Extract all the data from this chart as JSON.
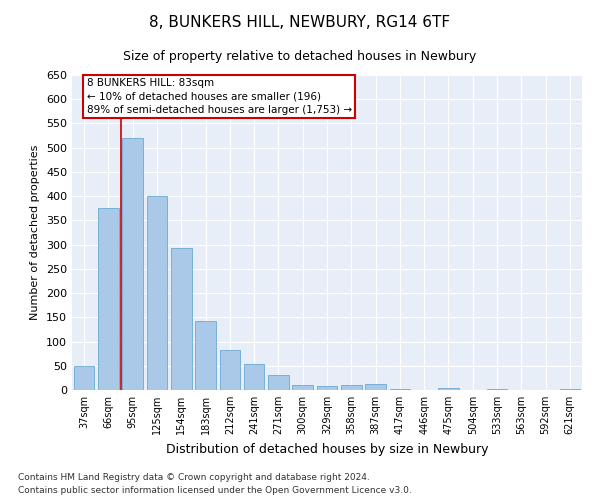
{
  "title1": "8, BUNKERS HILL, NEWBURY, RG14 6TF",
  "title2": "Size of property relative to detached houses in Newbury",
  "xlabel": "Distribution of detached houses by size in Newbury",
  "ylabel": "Number of detached properties",
  "categories": [
    "37sqm",
    "66sqm",
    "95sqm",
    "125sqm",
    "154sqm",
    "183sqm",
    "212sqm",
    "241sqm",
    "271sqm",
    "300sqm",
    "329sqm",
    "358sqm",
    "387sqm",
    "417sqm",
    "446sqm",
    "475sqm",
    "504sqm",
    "533sqm",
    "563sqm",
    "592sqm",
    "621sqm"
  ],
  "values": [
    50,
    375,
    520,
    400,
    292,
    143,
    83,
    54,
    30,
    10,
    8,
    11,
    13,
    2,
    0,
    4,
    0,
    3,
    0,
    0,
    3
  ],
  "bar_color": "#aac8e8",
  "bar_edge_color": "#6aaad4",
  "marker_line_color": "#cc0000",
  "annotation_line1": "8 BUNKERS HILL: 83sqm",
  "annotation_line2": "← 10% of detached houses are smaller (196)",
  "annotation_line3": "89% of semi-detached houses are larger (1,753) →",
  "annotation_box_color": "#ffffff",
  "annotation_border_color": "#cc0000",
  "ylim": [
    0,
    650
  ],
  "yticks": [
    0,
    50,
    100,
    150,
    200,
    250,
    300,
    350,
    400,
    450,
    500,
    550,
    600,
    650
  ],
  "background_color": "#e8eef8",
  "footnote1": "Contains HM Land Registry data © Crown copyright and database right 2024.",
  "footnote2": "Contains public sector information licensed under the Open Government Licence v3.0.",
  "title1_fontsize": 11,
  "title2_fontsize": 9,
  "xlabel_fontsize": 9,
  "ylabel_fontsize": 8,
  "xtick_fontsize": 7,
  "ytick_fontsize": 8,
  "footnote_fontsize": 6.5
}
